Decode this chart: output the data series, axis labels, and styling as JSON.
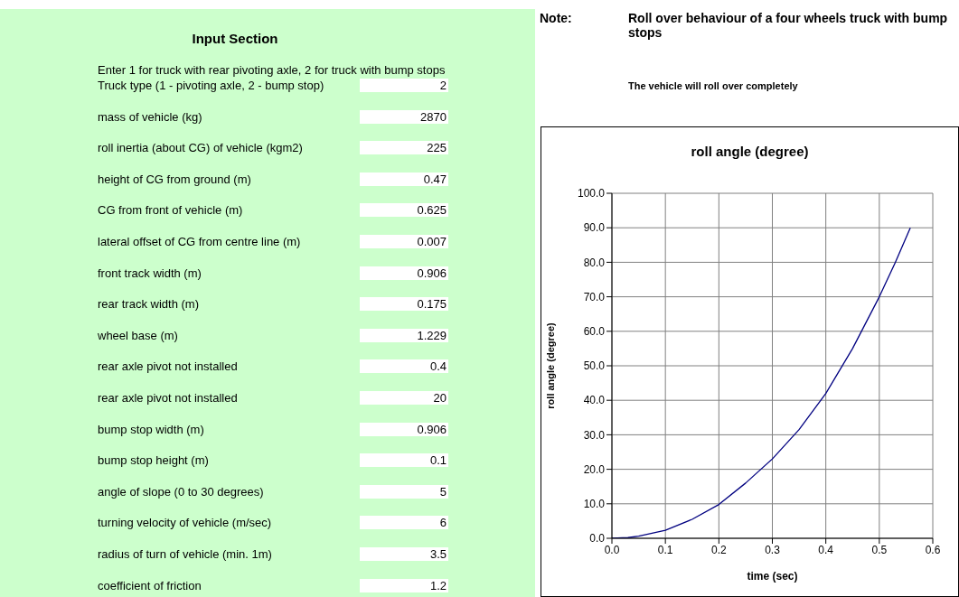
{
  "chart_data": [
    {
      "type": "other",
      "title": "Input Section",
      "annotations": [
        "Enter 1 for truck with rear pivoting axle, 2 for truck with bump stops",
        "Truck type (1 - pivoting axle, 2 - bump stop)",
        "2",
        "mass of vehicle (kg)",
        "2870",
        "roll inertia (about CG) of vehicle (kgm2)",
        "225",
        "height of CG from ground (m)",
        "0.47",
        "CG from front of vehicle (m)",
        "0.625",
        "lateral offset of CG from centre line (m)",
        "0.007",
        "front track width (m)",
        "0.906",
        "rear track width (m)",
        "0.175",
        "wheel base (m)",
        "1.229",
        "rear axle pivot not installed",
        "0.4",
        "rear axle pivot not installed",
        "20",
        "bump stop width (m)",
        "0.906",
        "bump stop height (m)",
        "0.1",
        "angle of slope (0 to 30 degrees)",
        "5",
        "turning velocity of vehicle (m/sec)",
        "6",
        "radius of turn of vehicle (min. 1m)",
        "3.5",
        "coefficient of friction",
        "1.2"
      ]
    },
    {
      "type": "line",
      "title": "roll angle (degree)",
      "xlabel": "time (sec)",
      "ylabel": "roll angle (degree)",
      "annotations": [
        "Note:",
        "Roll over behaviour of a four wheels truck with bump stops",
        "The vehicle will roll over completely"
      ],
      "x": [
        0,
        0.03,
        0.05,
        0.1,
        0.15,
        0.2,
        0.25,
        0.3,
        0.35,
        0.4,
        0.45,
        0.5,
        0.53,
        0.558
      ],
      "series": [
        {
          "color": "#000080",
          "values": [
            0,
            0.2,
            0.6,
            2.3,
            5.5,
            9.8,
            16,
            23,
            31.5,
            42,
            55,
            70,
            80,
            90
          ]
        }
      ],
      "xlim": [
        0,
        0.6
      ],
      "ylim": [
        0,
        100
      ],
      "xticks": [
        {
          "value": 0,
          "label": "0.0"
        },
        {
          "value": 0.1,
          "label": "0.1"
        },
        {
          "value": 0.2,
          "label": "0.2"
        },
        {
          "value": 0.3,
          "label": "0.3"
        },
        {
          "value": 0.4,
          "label": "0.4"
        },
        {
          "value": 0.5,
          "label": "0.5"
        },
        {
          "value": 0.6,
          "label": "0.6"
        }
      ],
      "yticks": [
        {
          "value": 0,
          "label": "0.0"
        },
        {
          "value": 10,
          "label": "10.0"
        },
        {
          "value": 20,
          "label": "20.0"
        },
        {
          "value": 30,
          "label": "30.0"
        },
        {
          "value": 40,
          "label": "40.0"
        },
        {
          "value": 50,
          "label": "50.0"
        },
        {
          "value": 60,
          "label": "60.0"
        },
        {
          "value": 70,
          "label": "70.0"
        },
        {
          "value": 80,
          "label": "80.0"
        },
        {
          "value": 90,
          "label": "90.0"
        },
        {
          "value": 100,
          "label": "100.0"
        }
      ],
      "grid": true
    }
  ]
}
